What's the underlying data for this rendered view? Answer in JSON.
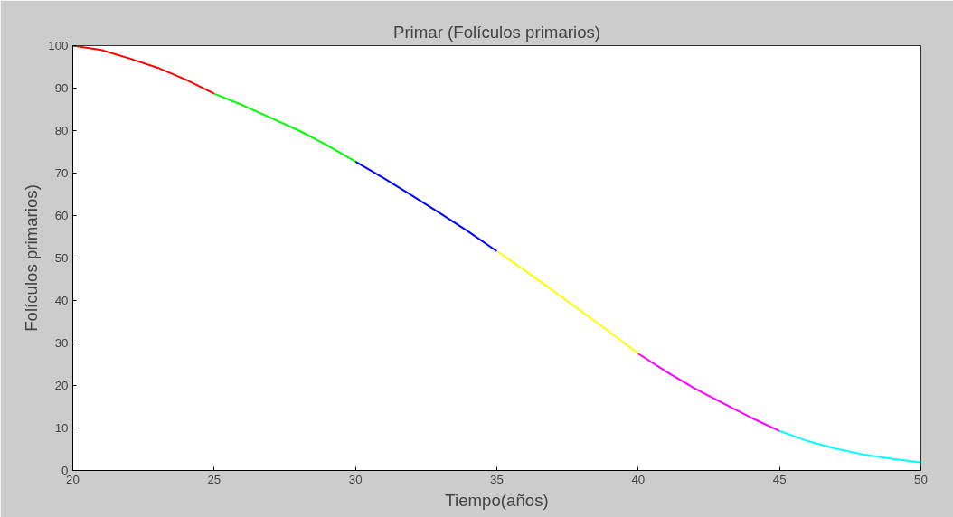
{
  "chart_data": {
    "type": "line",
    "title": "Primar (Folículos primarios)",
    "xlabel": "Tiempo(años)",
    "ylabel": "Folículos primarios)",
    "xlim": [
      20,
      50
    ],
    "ylim": [
      0,
      100
    ],
    "xticks": [
      20,
      25,
      30,
      35,
      40,
      45,
      50
    ],
    "yticks": [
      0,
      10,
      20,
      30,
      40,
      50,
      60,
      70,
      80,
      90,
      100
    ],
    "grid": false,
    "series": [
      {
        "color": "#ff0000",
        "x": [
          20,
          21,
          22,
          23,
          24,
          25
        ],
        "values": [
          100,
          99.0,
          97.0,
          94.8,
          92.0,
          88.7
        ]
      },
      {
        "color": "#00ff00",
        "x": [
          25,
          26,
          27,
          28,
          29,
          30
        ],
        "values": [
          88.7,
          86.0,
          83.0,
          80.0,
          76.5,
          72.7
        ]
      },
      {
        "color": "#0000ff",
        "x": [
          30,
          31,
          32,
          33,
          34,
          35
        ],
        "values": [
          72.7,
          68.8,
          64.7,
          60.5,
          56.2,
          51.6
        ]
      },
      {
        "color": "#ffff00",
        "x": [
          35,
          36,
          37,
          38,
          39,
          40
        ],
        "values": [
          51.6,
          47.0,
          42.2,
          37.4,
          32.5,
          27.5
        ]
      },
      {
        "color": "#ff00ff",
        "x": [
          40,
          41,
          42,
          43,
          44,
          45
        ],
        "values": [
          27.5,
          23.2,
          19.3,
          15.8,
          12.4,
          9.3
        ]
      },
      {
        "color": "#00ffff",
        "x": [
          45,
          46,
          47,
          48,
          49,
          50
        ],
        "values": [
          9.3,
          6.9,
          5.1,
          3.7,
          2.7,
          1.9
        ]
      }
    ]
  }
}
